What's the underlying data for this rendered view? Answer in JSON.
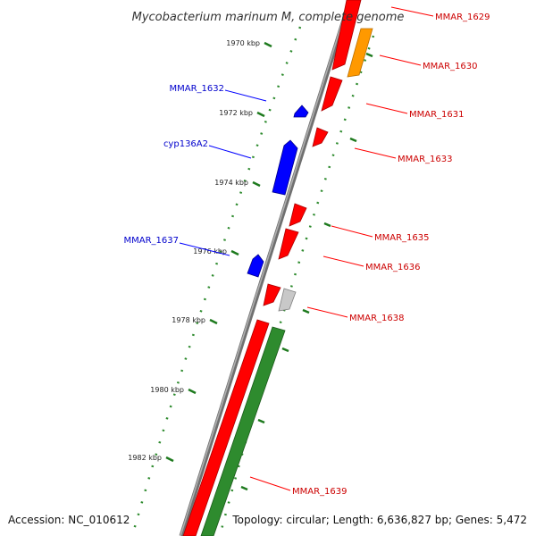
{
  "title": "Mycobacterium marinum M, complete genome",
  "footer": {
    "accession": "Accession: NC_010612",
    "summary": "Topology: circular; Length: 6,636,827 bp; Genes: 5,472"
  },
  "colors": {
    "forward_cds": "#ff0000",
    "reverse_cds": "#0000ff",
    "orange_feature": "#ff9900",
    "gray_feature": "#c0c0c0",
    "green_feature": "#2e8b2e",
    "backbone": "#808080",
    "forward_label": "#cc0000",
    "reverse_label": "#0000cc",
    "tick": "#1e7a1e"
  },
  "ticks": [
    "1970 kbp",
    "1972 kbp",
    "1974 kbp",
    "1976 kbp",
    "1978 kbp",
    "1980 kbp",
    "1982 kbp"
  ],
  "genes_forward": [
    "MMAR_1629",
    "MMAR_1630",
    "MMAR_1631",
    "MMAR_1633",
    "MMAR_1635",
    "MMAR_1636",
    "MMAR_1638",
    "MMAR_1639"
  ],
  "genes_reverse": [
    "MMAR_1632",
    "cyp136A2",
    "MMAR_1637"
  ]
}
